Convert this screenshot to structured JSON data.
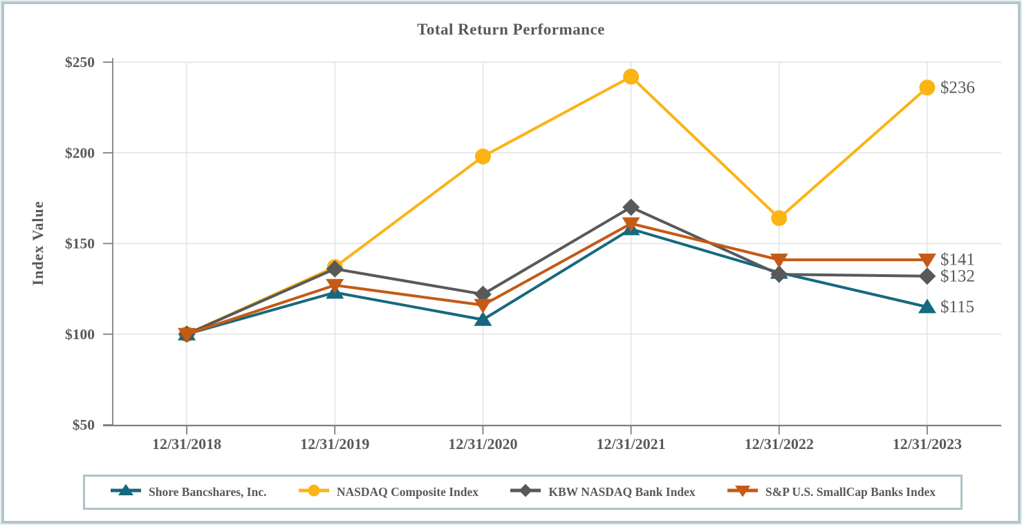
{
  "frame": {
    "background_color": "#FFFFFF",
    "border_color": "#B2C6CB"
  },
  "chart_data": {
    "type": "line",
    "title": "Total Return Performance",
    "xlabel": "",
    "ylabel": "Index Value",
    "categories": [
      "12/31/2018",
      "12/31/2019",
      "12/31/2020",
      "12/31/2021",
      "12/31/2022",
      "12/31/2023"
    ],
    "y_tick_labels": [
      "$50",
      "$100",
      "$150",
      "$200",
      "$250"
    ],
    "y_tick_values": [
      50,
      100,
      150,
      200,
      250
    ],
    "ylim": [
      50,
      250
    ],
    "grid": true,
    "legend_position": "bottom",
    "axis_color": "#7F7F7F",
    "grid_color": "#E2E2E2",
    "text_color": "#595959",
    "series": [
      {
        "name": "Shore Bancshares, Inc.",
        "marker": "triangle-up",
        "color": "#16697E",
        "values": [
          100,
          123,
          108,
          158,
          134,
          115
        ],
        "end_label": "$115"
      },
      {
        "name": "NASDAQ Composite Index",
        "marker": "circle",
        "color": "#FBB416",
        "values": [
          100,
          137,
          198,
          242,
          164,
          236
        ],
        "end_label": "$236"
      },
      {
        "name": "KBW NASDAQ Bank Index",
        "marker": "diamond",
        "color": "#58595B",
        "values": [
          100,
          136,
          122,
          170,
          133,
          132
        ],
        "end_label": "$132"
      },
      {
        "name": "S&P U.S. SmallCap Banks Index",
        "marker": "triangle-down",
        "color": "#C45A16",
        "values": [
          100,
          127,
          116,
          161,
          141,
          141
        ],
        "end_label": "$141"
      }
    ]
  }
}
